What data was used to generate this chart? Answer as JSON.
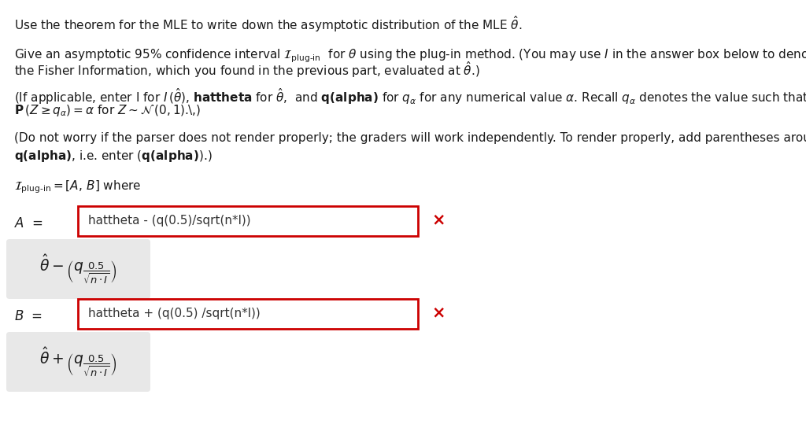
{
  "background_color": "#ffffff",
  "text_color": "#1a1a1a",
  "box_border_color": "#cc0000",
  "x_color": "#cc0000",
  "box_fill_color": "#ffffff",
  "rendered_box_color": "#e8e8e8",
  "fs_main": 11.0,
  "fs_formula": 13.5,
  "line1": "Use the theorem for the MLE to write down the asymptotic distribution of the MLE $\\hat{\\theta}$.",
  "p1a": "Give an asymptotic 95% confidence interval $\\mathcal{I}_{\\mathrm{plug\\text{-}in}}$  for $\\theta$ using the plug-in method. (You may use $I$ in the answer box below to denote $I\\,(\\hat{\\theta})$,",
  "p1b": "the Fisher Information, which you found in the previous part, evaluated at $\\hat{\\theta}$.)",
  "p2a": "(If applicable, enter I for $I\\,(\\hat{\\theta})$, $\\mathbf{hattheta}$ for $\\hat{\\theta}$,  and $\\mathbf{q(alpha)}$ for $q_{\\alpha}$ for any numerical value $\\alpha$. Recall $q_{\\alpha}$ denotes the value such that",
  "p2b": "$\\mathbf{P}\\,(Z \\geq q_{\\alpha}) = \\alpha$ for $Z \\sim \\mathcal{N}\\,(0, 1)$.\\,)",
  "p3a": "(Do not worry if the parser does not render properly; the graders will work independently. To render properly, add parentheses around",
  "p3b": "$\\mathbf{q(alpha)}$, i.e. enter ($\\mathbf{q(alpha)}$).)",
  "interval": "$\\mathcal{I}_{\\mathrm{plug\\text{-}in}} = [A,\\, B]$ where",
  "A_text": "hattheta - (q(0.5)/sqrt(n*l))",
  "B_text": "hattheta + (q(0.5) /sqrt(n*l))",
  "A_formula": "$\\hat{\\theta} - \\left(q_{\\dfrac{0.5}{\\sqrt{n \\cdot I}}}\\right)$",
  "B_formula": "$\\hat{\\theta} + \\left(q_{\\dfrac{0.5}{\\sqrt{n \\cdot I}}}\\right)$"
}
